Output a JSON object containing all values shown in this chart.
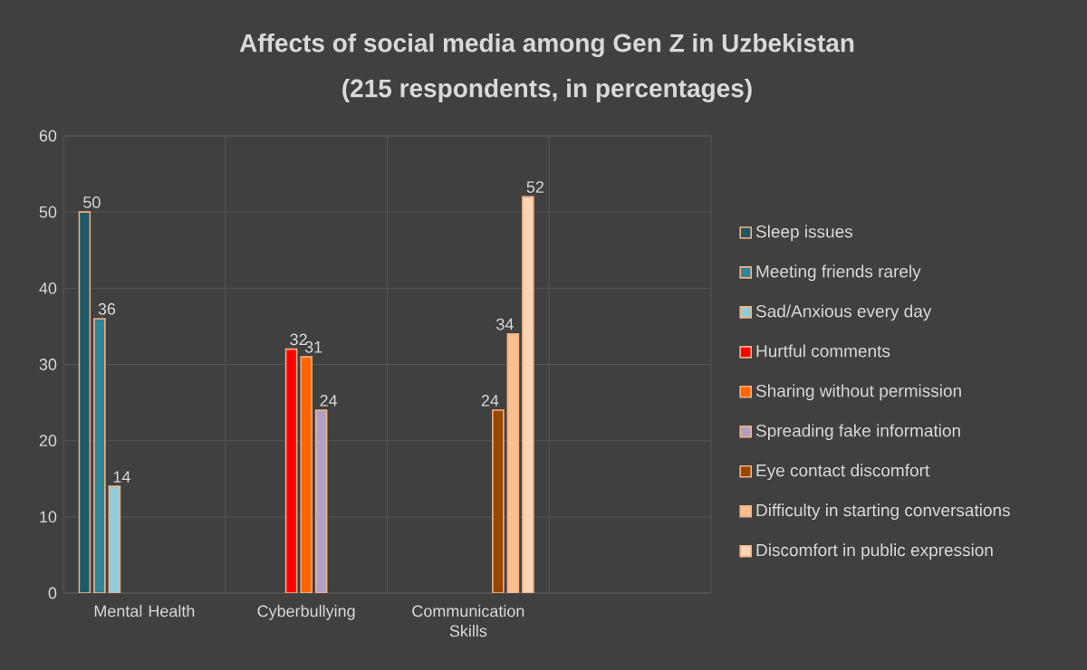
{
  "chart_data": {
    "type": "bar",
    "title": "Affects of social media among Gen Z in Uzbekistan",
    "subtitle": "(215 respondents, in percentages)",
    "categories": [
      "Mental Health",
      "Cyberbullying",
      "Communication Skills",
      null
    ],
    "series": [
      {
        "name": "Sleep issues",
        "color": "#215868",
        "values": [
          50,
          null,
          null,
          null
        ]
      },
      {
        "name": "Meeting friends rarely",
        "color": "#31869b",
        "values": [
          36,
          null,
          null,
          null
        ]
      },
      {
        "name": "Sad/Anxious every day",
        "color": "#92cddc",
        "values": [
          14,
          null,
          null,
          null
        ]
      },
      {
        "name": "Hurtful comments",
        "color": "#ff0000",
        "values": [
          null,
          32,
          null,
          null
        ]
      },
      {
        "name": "Sharing without permission",
        "color": "#ff6600",
        "values": [
          null,
          31,
          null,
          null
        ]
      },
      {
        "name": "Spreading fake information",
        "color": "#b1a0c7",
        "values": [
          null,
          24,
          null,
          null
        ]
      },
      {
        "name": "Eye contact discomfort",
        "color": "#974706",
        "values": [
          null,
          null,
          24,
          null
        ]
      },
      {
        "name": "Difficulty in starting conversations",
        "color": "#fabf8f",
        "values": [
          null,
          null,
          34,
          null
        ]
      },
      {
        "name": "Discomfort in public expression",
        "color": "#fcd5b4",
        "values": [
          null,
          null,
          52,
          null
        ]
      }
    ],
    "ylim": [
      0,
      60
    ],
    "yticks": [
      0,
      10,
      20,
      30,
      40,
      50,
      60
    ],
    "grid": true,
    "legend": "right",
    "data_labels": true
  }
}
